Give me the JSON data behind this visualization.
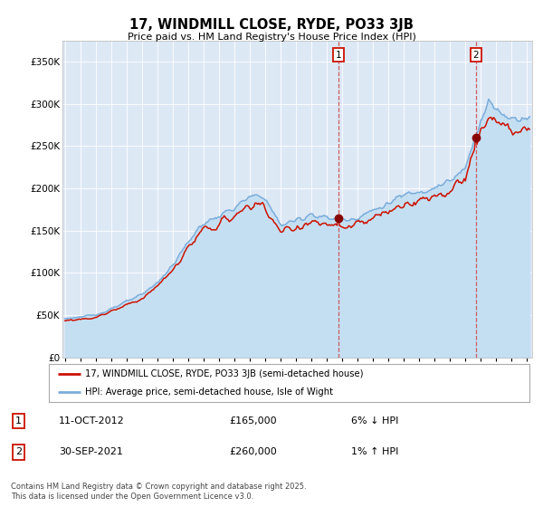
{
  "title": "17, WINDMILL CLOSE, RYDE, PO33 3JB",
  "subtitle": "Price paid vs. HM Land Registry's House Price Index (HPI)",
  "hpi_color": "#7aaddb",
  "hpi_fill_color": "#c5dff2",
  "price_color": "#cc1100",
  "marker_color": "#880000",
  "bg_plot": "#dde8f5",
  "ylabel_ticks": [
    "£0",
    "£50K",
    "£100K",
    "£150K",
    "£200K",
    "£250K",
    "£300K",
    "£350K"
  ],
  "ytick_vals": [
    0,
    50000,
    100000,
    150000,
    200000,
    250000,
    300000,
    350000
  ],
  "ylim": [
    0,
    375000
  ],
  "legend_line1": "17, WINDMILL CLOSE, RYDE, PO33 3JB (semi-detached house)",
  "legend_line2": "HPI: Average price, semi-detached house, Isle of Wight",
  "footnote": "Contains HM Land Registry data © Crown copyright and database right 2025.\nThis data is licensed under the Open Government Licence v3.0.",
  "start_year": 1995,
  "num_months": 363
}
